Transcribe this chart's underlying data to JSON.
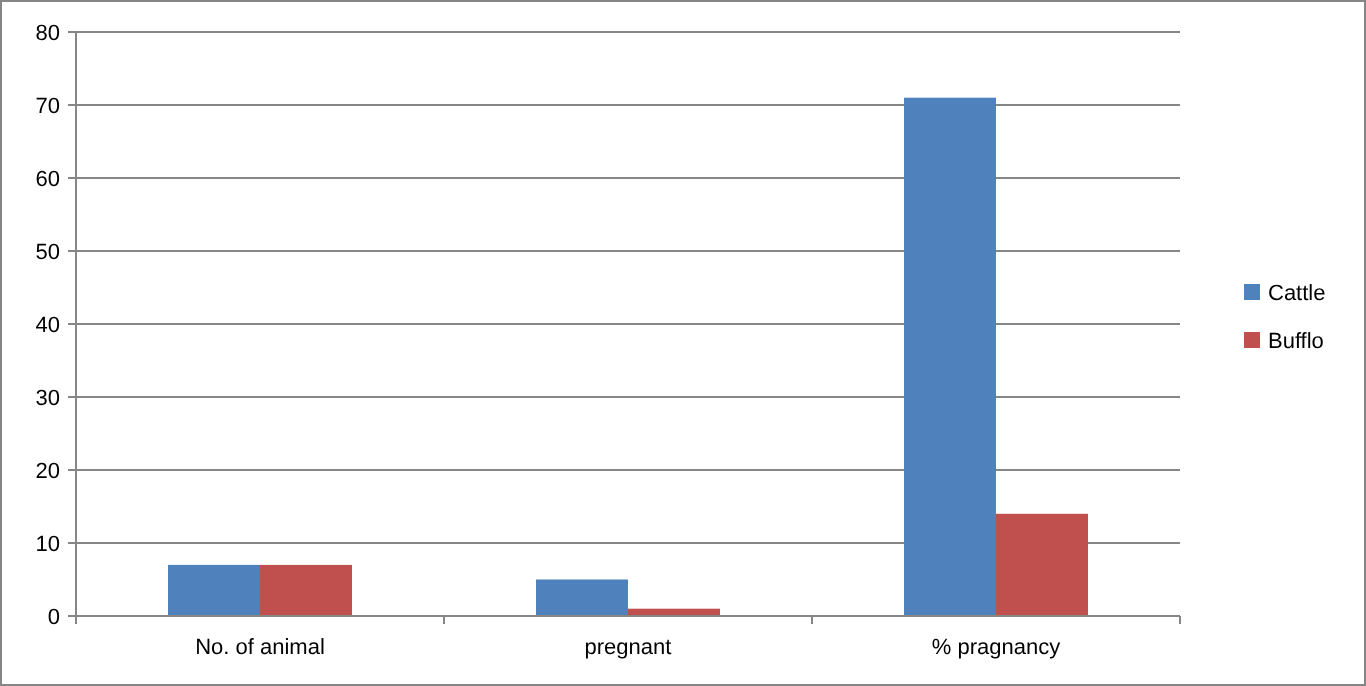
{
  "chart_data": {
    "type": "bar",
    "categories": [
      "No. of animal",
      "pregnant",
      "% pragnancy"
    ],
    "series": [
      {
        "name": "Cattle",
        "color": "#4f81bd",
        "values": [
          7,
          5,
          71
        ]
      },
      {
        "name": "Bufflo",
        "color": "#c0504d",
        "values": [
          7,
          1,
          14
        ]
      }
    ],
    "ylim": [
      0,
      80
    ],
    "yticks": [
      0,
      10,
      20,
      30,
      40,
      50,
      60,
      70,
      80
    ],
    "grid": "y",
    "legend": "right"
  }
}
